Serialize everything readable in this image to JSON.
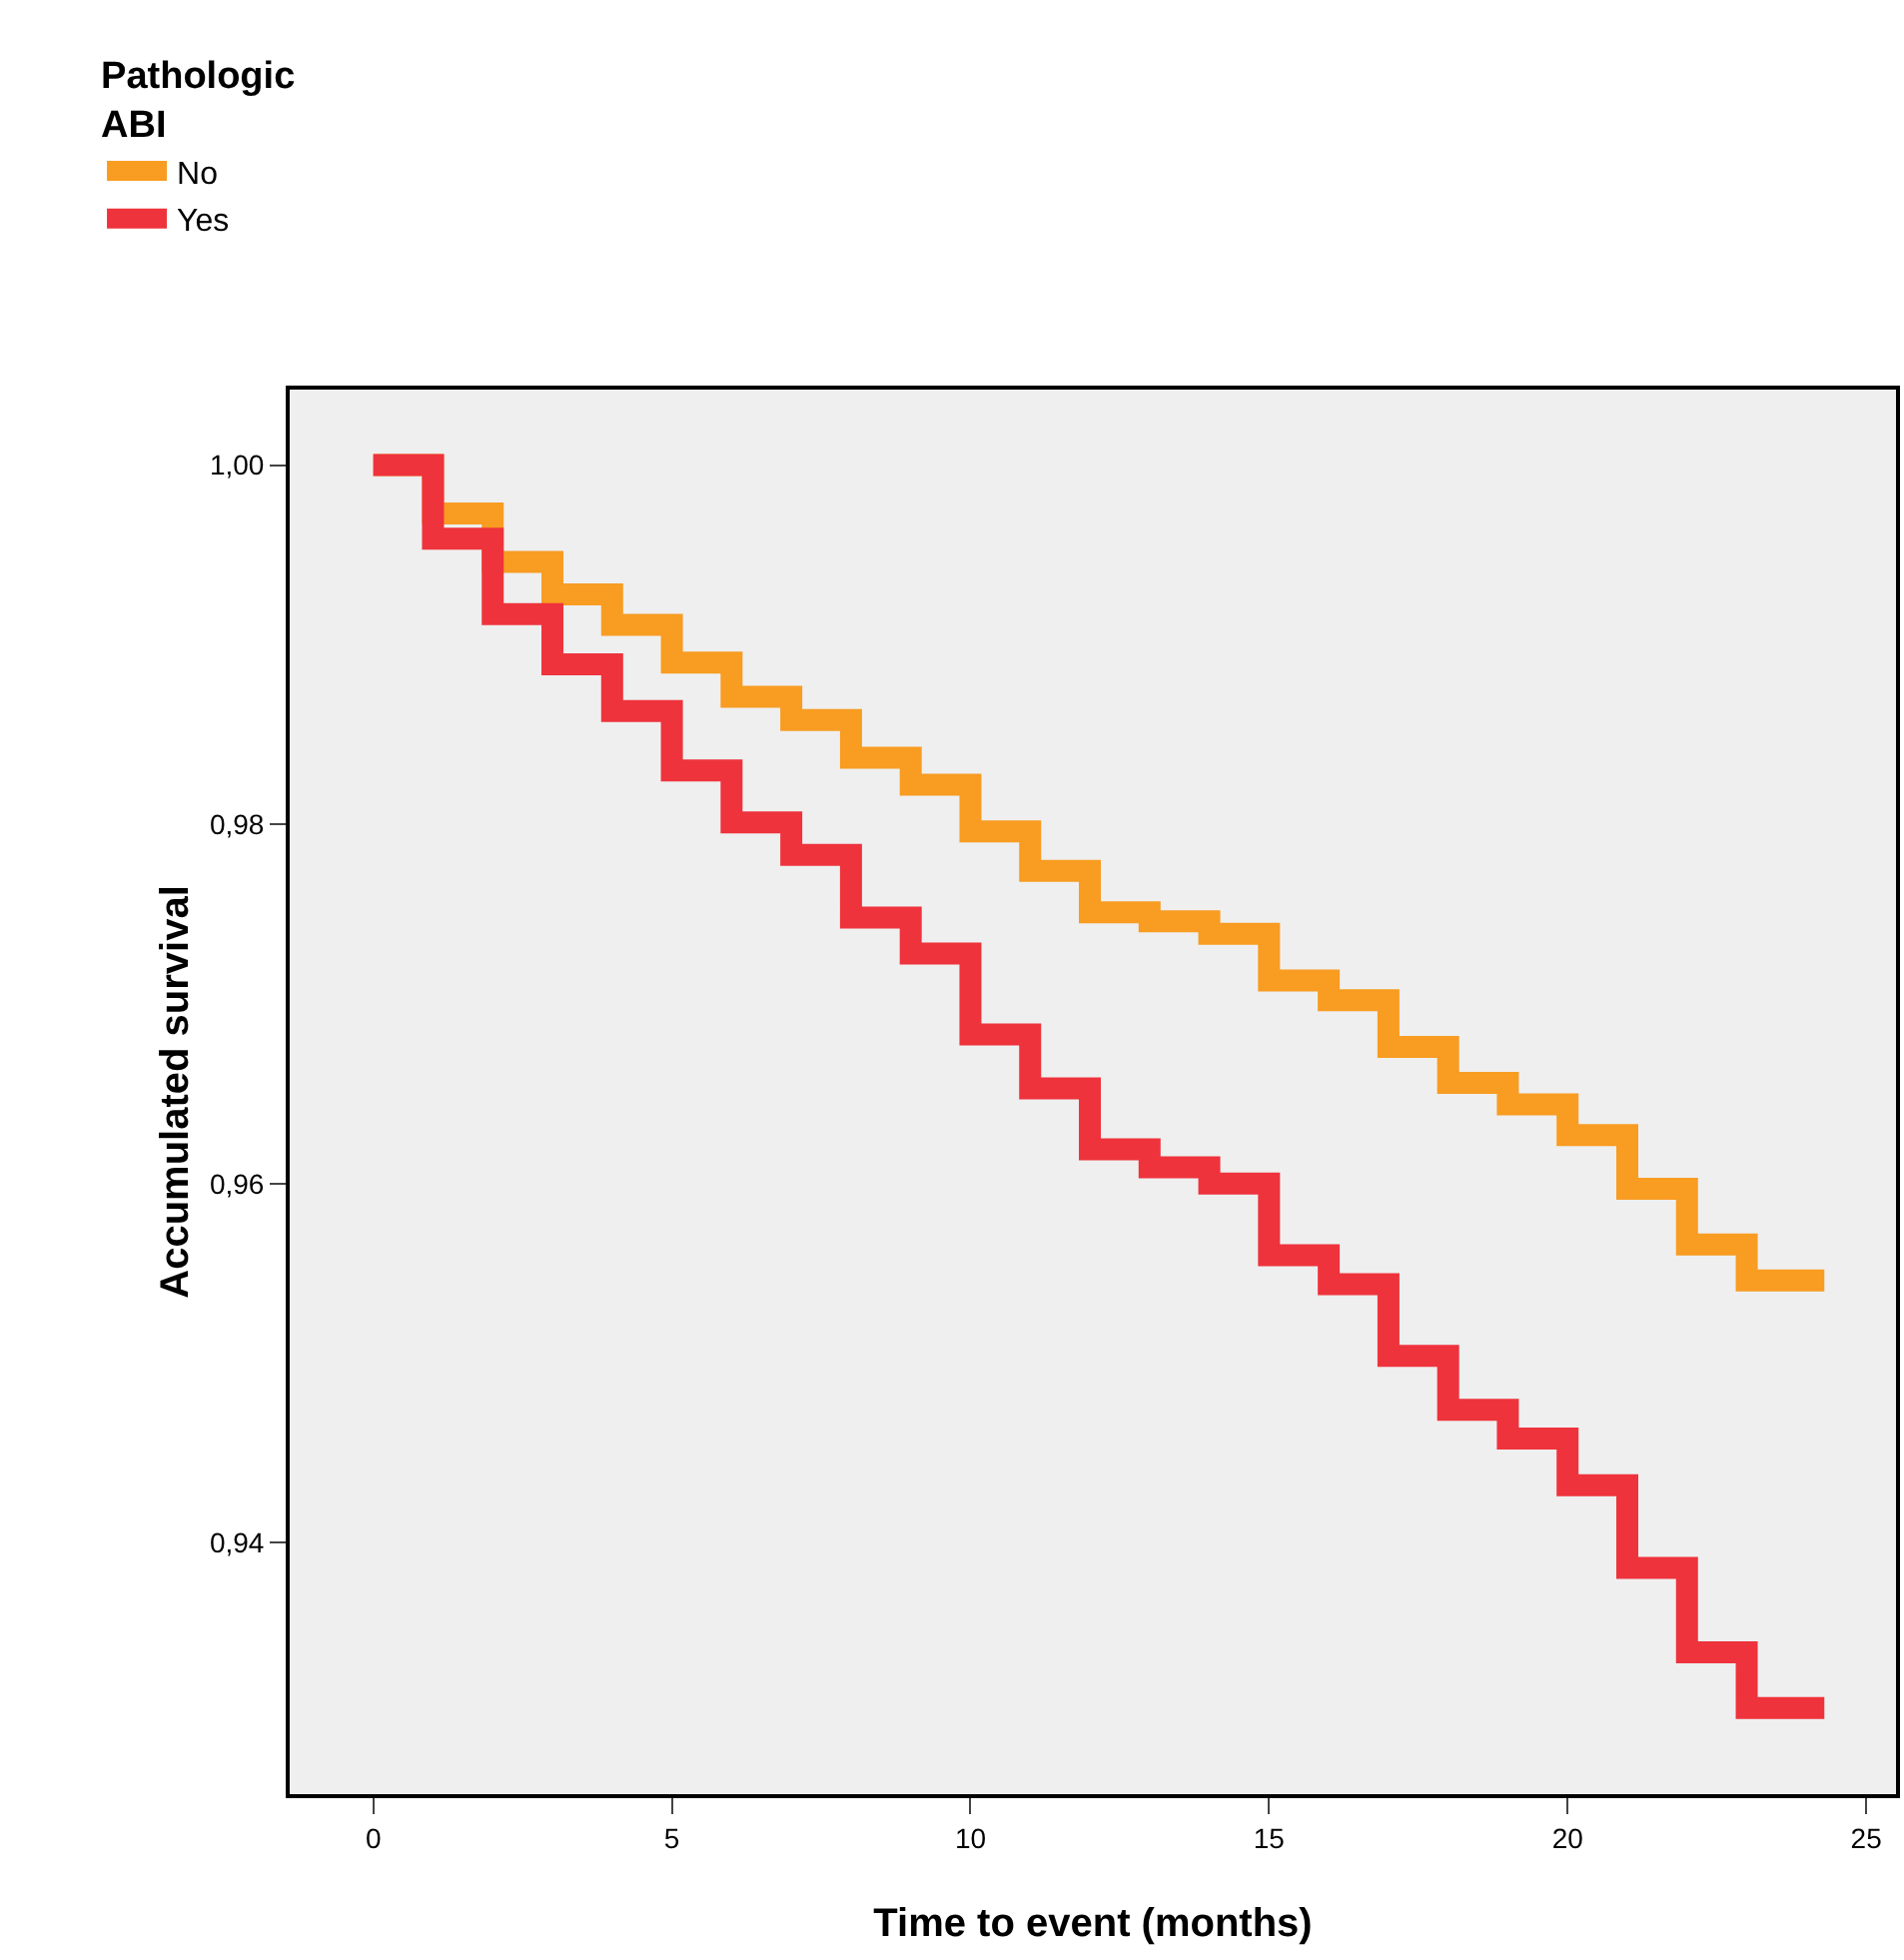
{
  "chart_data": {
    "type": "step",
    "xlabel": "Time to event (months)",
    "ylabel": "Accumulated survival",
    "legend_title": "Pathologic\nABI",
    "x": [
      0,
      1,
      2,
      3,
      4,
      5,
      6,
      7,
      8,
      9,
      10,
      11,
      12,
      13,
      14,
      15,
      16,
      17,
      18,
      19,
      20,
      21,
      22,
      23,
      24.3
    ],
    "series": [
      {
        "name": "No",
        "color": "#f89c22",
        "values": [
          1.0,
          0.9973,
          0.9946,
          0.9928,
          0.9911,
          0.989,
          0.9871,
          0.9858,
          0.9837,
          0.9822,
          0.9796,
          0.9774,
          0.9751,
          0.9746,
          0.9739,
          0.9713,
          0.9702,
          0.9676,
          0.9656,
          0.9644,
          0.9627,
          0.9597,
          0.9566,
          0.9546,
          0.9546
        ]
      },
      {
        "name": "Yes",
        "color": "#ee333c",
        "values": [
          1.0,
          0.9959,
          0.9917,
          0.9889,
          0.9863,
          0.983,
          0.9801,
          0.9783,
          0.9748,
          0.9728,
          0.9683,
          0.9653,
          0.9619,
          0.9609,
          0.96,
          0.956,
          0.9544,
          0.9504,
          0.9474,
          0.9458,
          0.9432,
          0.9386,
          0.9339,
          0.9308,
          0.9308
        ]
      }
    ],
    "xlim": [
      -1.4,
      25.5
    ],
    "xticks": [
      0,
      5,
      10,
      15,
      20,
      25
    ],
    "ylim": [
      0.926,
      1.0042
    ],
    "yticks": [
      {
        "value": 1.0,
        "label": "1,00"
      },
      {
        "value": 0.98,
        "label": "0,98"
      },
      {
        "value": 0.96,
        "label": "0,96"
      },
      {
        "value": 0.94,
        "label": "0,94"
      }
    ],
    "grid": false,
    "legend": "top left",
    "line_style": "solid",
    "marker": "none"
  }
}
